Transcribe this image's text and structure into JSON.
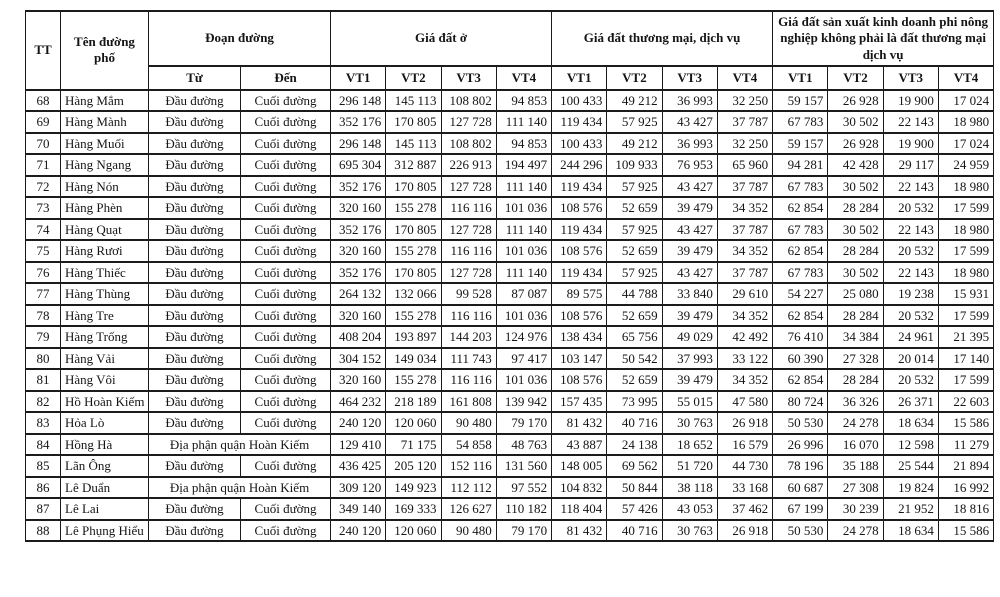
{
  "table": {
    "headers": {
      "tt": "TT",
      "street": "Tên đường phố",
      "section": "Đoạn đường",
      "from": "Từ",
      "to": "Đến",
      "residential": "Giá đất ở",
      "commercial": "Giá đất thương mại, dịch vụ",
      "production": "Giá đất sản xuất kinh doanh phi nông nghiệp không phải là đất thương mại dịch vụ",
      "vt": [
        "VT1",
        "VT2",
        "VT3",
        "VT4"
      ]
    },
    "merged_section_label": "Địa phận quận Hoàn Kiếm",
    "rows": [
      {
        "tt": "68",
        "street": "Hàng Mắm",
        "from": "Đầu đường",
        "to": "Cuối đường",
        "merged": false,
        "values": [
          "296 148",
          "145 113",
          "108 802",
          "94 853",
          "100 433",
          "49 212",
          "36 993",
          "32 250",
          "59 157",
          "26 928",
          "19 900",
          "17 024"
        ]
      },
      {
        "tt": "69",
        "street": "Hàng Mành",
        "from": "Đầu đường",
        "to": "Cuối đường",
        "merged": false,
        "values": [
          "352 176",
          "170 805",
          "127 728",
          "111 140",
          "119 434",
          "57 925",
          "43 427",
          "37 787",
          "67 783",
          "30 502",
          "22 143",
          "18 980"
        ]
      },
      {
        "tt": "70",
        "street": "Hàng Muối",
        "from": "Đầu đường",
        "to": "Cuối đường",
        "merged": false,
        "values": [
          "296 148",
          "145 113",
          "108 802",
          "94 853",
          "100 433",
          "49 212",
          "36 993",
          "32 250",
          "59 157",
          "26 928",
          "19 900",
          "17 024"
        ]
      },
      {
        "tt": "71",
        "street": "Hàng Ngang",
        "from": "Đầu đường",
        "to": "Cuối đường",
        "merged": false,
        "values": [
          "695 304",
          "312 887",
          "226 913",
          "194 497",
          "244 296",
          "109 933",
          "76 953",
          "65 960",
          "94 281",
          "42 428",
          "29 117",
          "24 959"
        ]
      },
      {
        "tt": "72",
        "street": "Hàng Nón",
        "from": "Đầu đường",
        "to": "Cuối đường",
        "merged": false,
        "values": [
          "352 176",
          "170 805",
          "127 728",
          "111 140",
          "119 434",
          "57 925",
          "43 427",
          "37 787",
          "67 783",
          "30 502",
          "22 143",
          "18 980"
        ]
      },
      {
        "tt": "73",
        "street": "Hàng Phèn",
        "from": "Đầu đường",
        "to": "Cuối đường",
        "merged": false,
        "values": [
          "320 160",
          "155 278",
          "116 116",
          "101 036",
          "108 576",
          "52 659",
          "39 479",
          "34 352",
          "62 854",
          "28 284",
          "20 532",
          "17 599"
        ]
      },
      {
        "tt": "74",
        "street": "Hàng Quạt",
        "from": "Đầu đường",
        "to": "Cuối đường",
        "merged": false,
        "values": [
          "352 176",
          "170 805",
          "127 728",
          "111 140",
          "119 434",
          "57 925",
          "43 427",
          "37 787",
          "67 783",
          "30 502",
          "22 143",
          "18 980"
        ]
      },
      {
        "tt": "75",
        "street": "Hàng Rươi",
        "from": "Đầu đường",
        "to": "Cuối đường",
        "merged": false,
        "values": [
          "320 160",
          "155 278",
          "116 116",
          "101 036",
          "108 576",
          "52 659",
          "39 479",
          "34 352",
          "62 854",
          "28 284",
          "20 532",
          "17 599"
        ]
      },
      {
        "tt": "76",
        "street": "Hàng Thiếc",
        "from": "Đầu đường",
        "to": "Cuối đường",
        "merged": false,
        "values": [
          "352 176",
          "170 805",
          "127 728",
          "111 140",
          "119 434",
          "57 925",
          "43 427",
          "37 787",
          "67 783",
          "30 502",
          "22 143",
          "18 980"
        ]
      },
      {
        "tt": "77",
        "street": "Hàng Thùng",
        "from": "Đầu đường",
        "to": "Cuối đường",
        "merged": false,
        "values": [
          "264 132",
          "132 066",
          "99 528",
          "87 087",
          "89 575",
          "44 788",
          "33 840",
          "29 610",
          "54 227",
          "25 080",
          "19 238",
          "15 931"
        ]
      },
      {
        "tt": "78",
        "street": "Hàng Tre",
        "from": "Đầu đường",
        "to": "Cuối đường",
        "merged": false,
        "values": [
          "320 160",
          "155 278",
          "116 116",
          "101 036",
          "108 576",
          "52 659",
          "39 479",
          "34 352",
          "62 854",
          "28 284",
          "20 532",
          "17 599"
        ]
      },
      {
        "tt": "79",
        "street": "Hàng Trống",
        "from": "Đầu đường",
        "to": "Cuối đường",
        "merged": false,
        "values": [
          "408 204",
          "193 897",
          "144 203",
          "124 976",
          "138 434",
          "65 756",
          "49 029",
          "42 492",
          "76 410",
          "34 384",
          "24 961",
          "21 395"
        ]
      },
      {
        "tt": "80",
        "street": "Hàng Vải",
        "from": "Đầu đường",
        "to": "Cuối đường",
        "merged": false,
        "values": [
          "304 152",
          "149 034",
          "111 743",
          "97 417",
          "103 147",
          "50 542",
          "37 993",
          "33 122",
          "60 390",
          "27 328",
          "20 014",
          "17 140"
        ]
      },
      {
        "tt": "81",
        "street": "Hàng Vôi",
        "from": "Đầu đường",
        "to": "Cuối đường",
        "merged": false,
        "values": [
          "320 160",
          "155 278",
          "116 116",
          "101 036",
          "108 576",
          "52 659",
          "39 479",
          "34 352",
          "62 854",
          "28 284",
          "20 532",
          "17 599"
        ]
      },
      {
        "tt": "82",
        "street": "Hồ Hoàn Kiếm",
        "from": "Đầu đường",
        "to": "Cuối đường",
        "merged": false,
        "values": [
          "464 232",
          "218 189",
          "161 808",
          "139 942",
          "157 435",
          "73 995",
          "55 015",
          "47 580",
          "80 724",
          "36 326",
          "26 371",
          "22 603"
        ]
      },
      {
        "tt": "83",
        "street": "Hỏa Lò",
        "from": "Đầu đường",
        "to": "Cuối đường",
        "merged": false,
        "values": [
          "240 120",
          "120 060",
          "90 480",
          "79 170",
          "81 432",
          "40 716",
          "30 763",
          "26 918",
          "50 530",
          "24 278",
          "18 634",
          "15 586"
        ]
      },
      {
        "tt": "84",
        "street": "Hồng Hà",
        "from": "Địa phận quận Hoàn Kiếm",
        "to": null,
        "merged": true,
        "values": [
          "129 410",
          "71 175",
          "54 858",
          "48 763",
          "43 887",
          "24 138",
          "18 652",
          "16 579",
          "26 996",
          "16 070",
          "12 598",
          "11 279"
        ]
      },
      {
        "tt": "85",
        "street": "Lãn Ông",
        "from": "Đầu đường",
        "to": "Cuối đường",
        "merged": false,
        "values": [
          "436 425",
          "205 120",
          "152 116",
          "131 560",
          "148 005",
          "69 562",
          "51 720",
          "44 730",
          "78 196",
          "35 188",
          "25 544",
          "21 894"
        ]
      },
      {
        "tt": "86",
        "street": "Lê Duẩn",
        "from": "Địa phận quận Hoàn Kiếm",
        "to": null,
        "merged": true,
        "values": [
          "309 120",
          "149 923",
          "112 112",
          "97 552",
          "104 832",
          "50 844",
          "38 118",
          "33 168",
          "60 687",
          "27 308",
          "19 824",
          "16 992"
        ]
      },
      {
        "tt": "87",
        "street": "Lê Lai",
        "from": "Đầu đường",
        "to": "Cuối đường",
        "merged": false,
        "values": [
          "349 140",
          "169 333",
          "126 627",
          "110 182",
          "118 404",
          "57 426",
          "43 053",
          "37 462",
          "67 199",
          "30 239",
          "21 952",
          "18 816"
        ]
      },
      {
        "tt": "88",
        "street": "Lê Phụng Hiểu",
        "from": "Đầu đường",
        "to": "Cuối đường",
        "merged": false,
        "values": [
          "240 120",
          "120 060",
          "90 480",
          "79 170",
          "81 432",
          "40 716",
          "30 763",
          "26 918",
          "50 530",
          "24 278",
          "18 634",
          "15 586"
        ]
      }
    ]
  }
}
